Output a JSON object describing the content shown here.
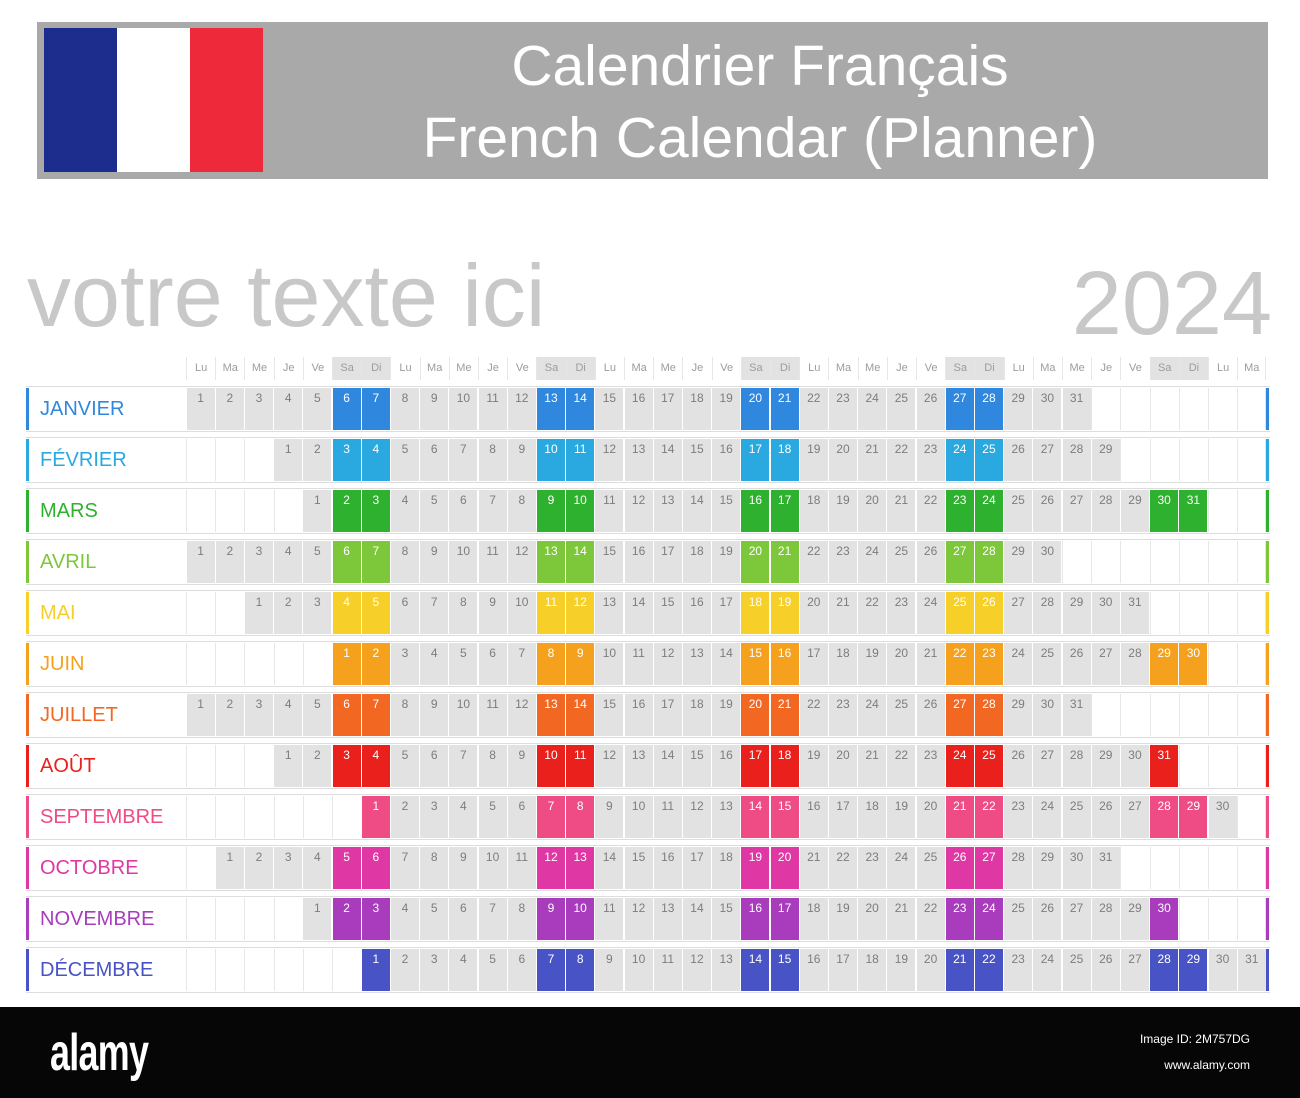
{
  "header": {
    "title_fr": "Calendrier Français",
    "title_en": "French Calendar (Planner)",
    "bar_color": "#a9a9a9",
    "flag_colors": {
      "blue": "#1c2d8e",
      "white": "#ffffff",
      "red": "#ee2a3a"
    }
  },
  "placeholder_text": "votre texte ici",
  "year": "2024",
  "day_headers": [
    "Lu",
    "Ma",
    "Me",
    "Je",
    "Ve",
    "Sa",
    "Di",
    "Lu",
    "Ma",
    "Me",
    "Je",
    "Ve",
    "Sa",
    "Di",
    "Lu",
    "Ma",
    "Me",
    "Je",
    "Ve",
    "Sa",
    "Di",
    "Lu",
    "Ma",
    "Me",
    "Je",
    "Ve",
    "Sa",
    "Di",
    "Lu",
    "Ma",
    "Me",
    "Je",
    "Ve",
    "Sa",
    "Di",
    "Lu",
    "Ma"
  ],
  "colors": {
    "day_cell": "#e2e2e2",
    "day_number": "#7d7d7d",
    "weekend_number": "#ffffff",
    "header_label": "#9c9c9c",
    "header_weekend": "#e2e2e2",
    "muted_text": "#c8c8c8",
    "footer_bg": "#060606"
  },
  "months": [
    {
      "name": "JANVIER",
      "color": "#2f87de",
      "first_weekday": 0,
      "days": 31
    },
    {
      "name": "FÉVRIER",
      "color": "#2aa8e0",
      "first_weekday": 3,
      "days": 29
    },
    {
      "name": "MARS",
      "color": "#2eb12e",
      "first_weekday": 4,
      "days": 31
    },
    {
      "name": "AVRIL",
      "color": "#7dc73b",
      "first_weekday": 0,
      "days": 30
    },
    {
      "name": "MAI",
      "color": "#f6cf28",
      "first_weekday": 2,
      "days": 31
    },
    {
      "name": "JUIN",
      "color": "#f6a11e",
      "first_weekday": 5,
      "days": 30
    },
    {
      "name": "JUILLET",
      "color": "#f26822",
      "first_weekday": 0,
      "days": 31
    },
    {
      "name": "AOÛT",
      "color": "#e9201c",
      "first_weekday": 3,
      "days": 31
    },
    {
      "name": "SEPTEMBRE",
      "color": "#ef4b84",
      "first_weekday": 6,
      "days": 30
    },
    {
      "name": "OCTOBRE",
      "color": "#df38a4",
      "first_weekday": 1,
      "days": 31
    },
    {
      "name": "NOVEMBRE",
      "color": "#a83cbc",
      "first_weekday": 4,
      "days": 30
    },
    {
      "name": "DÉCEMBRE",
      "color": "#4853c6",
      "first_weekday": 6,
      "days": 31
    }
  ],
  "footer": {
    "logo": "alamy",
    "image_id": "Image ID: 2M757DG",
    "url": "www.alamy.com"
  }
}
